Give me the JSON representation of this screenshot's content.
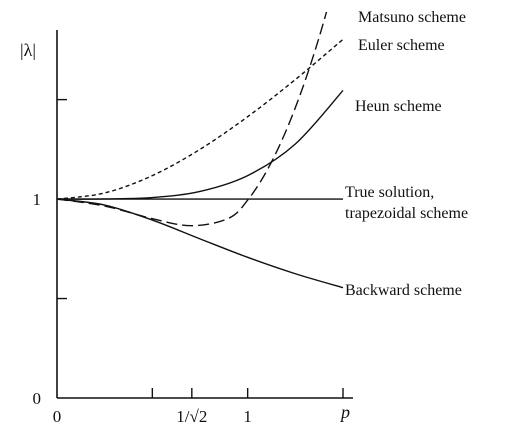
{
  "chart_data": {
    "type": "line",
    "title": "",
    "xlabel": "p",
    "ylabel": "|λ|",
    "xlim": [
      0,
      1.5
    ],
    "ylim": [
      0,
      1.85
    ],
    "grid": false,
    "x_ticks": [
      {
        "value": 0,
        "label": "0"
      },
      {
        "value": 0.5,
        "label": ""
      },
      {
        "value": 0.7071,
        "label": "1/√2"
      },
      {
        "value": 1.0,
        "label": "1"
      },
      {
        "value": 1.5,
        "label": ""
      }
    ],
    "y_ticks": [
      {
        "value": 0,
        "label": "0"
      },
      {
        "value": 0.5,
        "label": ""
      },
      {
        "value": 1.0,
        "label": "1"
      },
      {
        "value": 1.5,
        "label": ""
      }
    ],
    "series": [
      {
        "name": "Matsuno scheme",
        "style": "long-dash",
        "x": [
          0,
          0.25,
          0.5,
          0.7071,
          0.9,
          1.0,
          1.1,
          1.2,
          1.3,
          1.4,
          1.5
        ],
        "y": [
          1.0,
          0.9651,
          0.9014,
          0.866,
          0.9034,
          0.995,
          1.1416,
          1.3404,
          1.5912,
          1.8951,
          2.2541
        ]
      },
      {
        "name": "Euler scheme",
        "style": "short-dash",
        "x": [
          0,
          0.25,
          0.5,
          0.75,
          1.0,
          1.25,
          1.5
        ],
        "y": [
          1.0,
          1.0308,
          1.118,
          1.25,
          1.4142,
          1.6008,
          1.8028
        ]
      },
      {
        "name": "Heun scheme",
        "style": "solid",
        "x": [
          0,
          0.25,
          0.5,
          0.75,
          1.0,
          1.25,
          1.5
        ],
        "y": [
          1.0,
          1.0005,
          1.0078,
          1.0385,
          1.118,
          1.2769,
          1.5462
        ]
      },
      {
        "name": "True solution,",
        "name_line2": "trapezoidal scheme",
        "style": "solid",
        "x": [
          0,
          1.5
        ],
        "y": [
          1.0,
          1.0
        ]
      },
      {
        "name": "Backward scheme",
        "style": "solid",
        "x": [
          0,
          0.25,
          0.5,
          0.75,
          1.0,
          1.25,
          1.5
        ],
        "y": [
          1.0,
          0.9701,
          0.8944,
          0.8,
          0.7071,
          0.6247,
          0.5547
        ]
      }
    ]
  }
}
